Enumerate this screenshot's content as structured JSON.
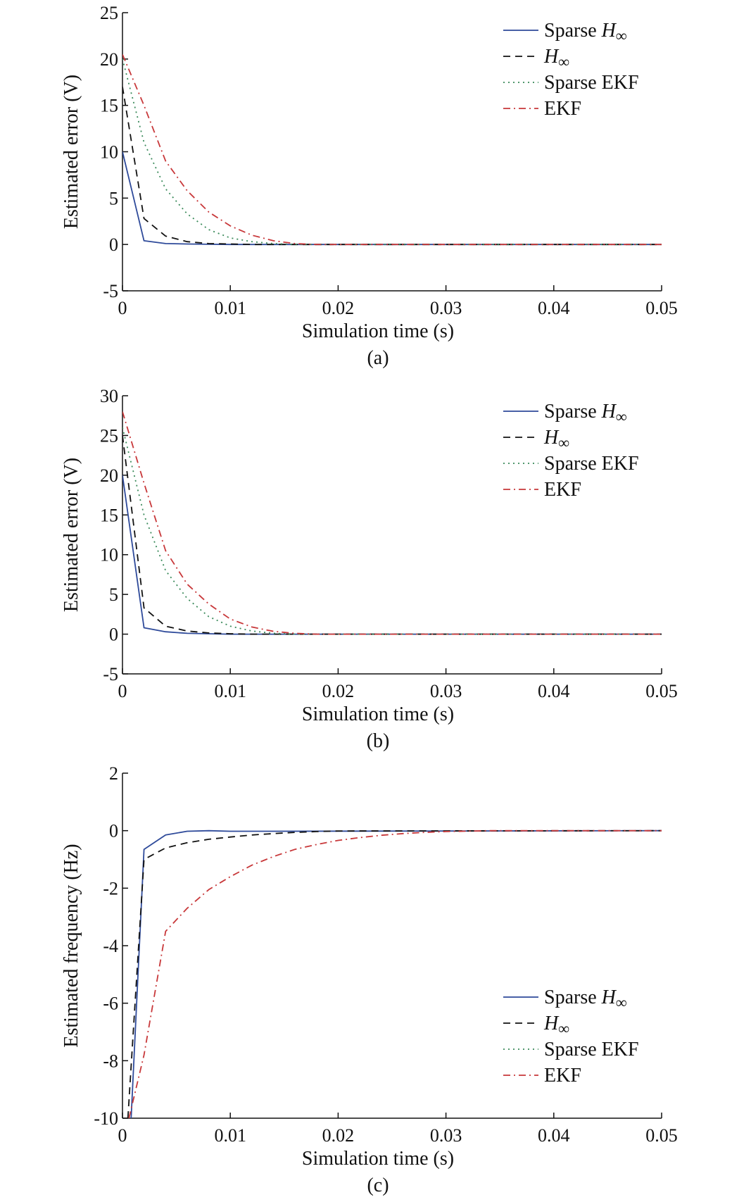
{
  "chart_data": [
    {
      "type": "line",
      "panel_label": "(a)",
      "xlabel": "Simulation time (s)",
      "ylabel": "Estimated error (V)",
      "xlim": [
        0,
        0.05
      ],
      "ylim": [
        -5,
        25
      ],
      "xticks": [
        "0",
        "0.01",
        "0.02",
        "0.03",
        "0.04",
        "0.05"
      ],
      "yticks": [
        "-5",
        "0",
        "5",
        "10",
        "15",
        "20",
        "25"
      ],
      "grid": false,
      "legend_position": "top-right",
      "series": [
        {
          "name": "Sparse H∞",
          "name_base": "Sparse ",
          "name_italic": "H",
          "name_sub": "∞",
          "color": "#2e4a9a",
          "dash": "solid",
          "x": [
            0,
            0.002,
            0.004,
            0.006,
            0.008,
            0.01,
            0.05
          ],
          "y": [
            10,
            0.4,
            0.1,
            0.05,
            0.02,
            0.0,
            0.0
          ]
        },
        {
          "name": "H∞",
          "name_base": "",
          "name_italic": "H",
          "name_sub": "∞",
          "color": "#111111",
          "dash": "dashed",
          "x": [
            0,
            0.002,
            0.004,
            0.006,
            0.008,
            0.01,
            0.012,
            0.05
          ],
          "y": [
            17,
            2.8,
            0.9,
            0.3,
            0.1,
            0.05,
            0.0,
            0.0
          ]
        },
        {
          "name": "Sparse EKF",
          "name_base": "Sparse EKF",
          "name_italic": "",
          "name_sub": "",
          "color": "#3a8a5a",
          "dash": "dotted",
          "x": [
            0,
            0.002,
            0.004,
            0.006,
            0.008,
            0.01,
            0.012,
            0.014,
            0.016,
            0.05
          ],
          "y": [
            20,
            11,
            6,
            3.3,
            1.6,
            0.7,
            0.3,
            0.1,
            0.0,
            0.0
          ]
        },
        {
          "name": "EKF",
          "name_base": "EKF",
          "name_italic": "",
          "name_sub": "",
          "color": "#c8383a",
          "dash": "dashdot",
          "x": [
            0,
            0.002,
            0.004,
            0.006,
            0.008,
            0.01,
            0.012,
            0.014,
            0.016,
            0.018,
            0.05
          ],
          "y": [
            20.5,
            15,
            9,
            5.8,
            3.5,
            2.0,
            1.0,
            0.4,
            0.1,
            0.0,
            0.0
          ]
        }
      ]
    },
    {
      "type": "line",
      "panel_label": "(b)",
      "xlabel": "Simulation time (s)",
      "ylabel": "Estimated error (V)",
      "xlim": [
        0,
        0.05
      ],
      "ylim": [
        -5,
        30
      ],
      "xticks": [
        "0",
        "0.01",
        "0.02",
        "0.03",
        "0.04",
        "0.05"
      ],
      "yticks": [
        "-5",
        "0",
        "5",
        "10",
        "15",
        "20",
        "25",
        "30"
      ],
      "grid": false,
      "legend_position": "top-right",
      "series": [
        {
          "name": "Sparse H∞",
          "name_base": "Sparse ",
          "name_italic": "H",
          "name_sub": "∞",
          "color": "#2e4a9a",
          "dash": "solid",
          "x": [
            0,
            0.002,
            0.004,
            0.006,
            0.008,
            0.01,
            0.05
          ],
          "y": [
            20,
            0.8,
            0.3,
            0.1,
            0.05,
            0.0,
            0.0
          ]
        },
        {
          "name": "H∞",
          "name_base": "",
          "name_italic": "H",
          "name_sub": "∞",
          "color": "#111111",
          "dash": "dashed",
          "x": [
            0,
            0.002,
            0.004,
            0.006,
            0.008,
            0.01,
            0.012,
            0.05
          ],
          "y": [
            25,
            3.3,
            1.0,
            0.4,
            0.15,
            0.05,
            0.0,
            0.0
          ]
        },
        {
          "name": "Sparse EKF",
          "name_base": "Sparse EKF",
          "name_italic": "",
          "name_sub": "",
          "color": "#3a8a5a",
          "dash": "dotted",
          "x": [
            0,
            0.002,
            0.004,
            0.006,
            0.008,
            0.01,
            0.012,
            0.014,
            0.016,
            0.05
          ],
          "y": [
            26,
            15,
            8,
            4.5,
            2.2,
            1.0,
            0.4,
            0.1,
            0.0,
            0.0
          ]
        },
        {
          "name": "EKF",
          "name_base": "EKF",
          "name_italic": "",
          "name_sub": "",
          "color": "#c8383a",
          "dash": "dashdot",
          "x": [
            0,
            0.002,
            0.004,
            0.006,
            0.008,
            0.01,
            0.012,
            0.014,
            0.016,
            0.018,
            0.05
          ],
          "y": [
            28,
            19,
            10.5,
            6.3,
            3.8,
            1.9,
            0.9,
            0.35,
            0.1,
            0.0,
            0.0
          ]
        }
      ]
    },
    {
      "type": "line",
      "panel_label": "(c)",
      "xlabel": "Simulation time (s)",
      "ylabel": "Estimated frequency (Hz)",
      "xlim": [
        0,
        0.05
      ],
      "ylim": [
        -10,
        2
      ],
      "xticks": [
        "0",
        "0.01",
        "0.02",
        "0.03",
        "0.04",
        "0.05"
      ],
      "yticks": [
        "-10",
        "-8",
        "-6",
        "-4",
        "-2",
        "0",
        "2"
      ],
      "grid": false,
      "legend_position": "bottom-right",
      "series": [
        {
          "name": "Sparse H∞",
          "name_base": "Sparse ",
          "name_italic": "H",
          "name_sub": "∞",
          "color": "#2e4a9a",
          "dash": "solid",
          "x": [
            0.0008,
            0.002,
            0.004,
            0.006,
            0.008,
            0.01,
            0.012,
            0.05
          ],
          "y": [
            -10,
            -0.65,
            -0.15,
            -0.02,
            0.0,
            -0.02,
            -0.02,
            0.0
          ]
        },
        {
          "name": "H∞",
          "name_base": "",
          "name_italic": "H",
          "name_sub": "∞",
          "color": "#111111",
          "dash": "dashed",
          "x": [
            0.0005,
            0.002,
            0.004,
            0.006,
            0.008,
            0.01,
            0.012,
            0.014,
            0.016,
            0.018,
            0.02,
            0.05
          ],
          "y": [
            -10,
            -1.0,
            -0.6,
            -0.42,
            -0.3,
            -0.22,
            -0.15,
            -0.1,
            -0.06,
            -0.03,
            -0.01,
            0.0
          ]
        },
        {
          "name": "Sparse EKF",
          "name_base": "Sparse EKF",
          "name_italic": "",
          "name_sub": "",
          "color": "#3a8a5a",
          "dash": "dotted",
          "x": [],
          "y": []
        },
        {
          "name": "EKF",
          "name_base": "EKF",
          "name_italic": "",
          "name_sub": "",
          "color": "#c8383a",
          "dash": "dashdot",
          "x": [
            0.0006,
            0.002,
            0.004,
            0.006,
            0.008,
            0.01,
            0.012,
            0.014,
            0.016,
            0.018,
            0.02,
            0.022,
            0.024,
            0.026,
            0.028,
            0.03,
            0.034,
            0.05
          ],
          "y": [
            -10,
            -7.8,
            -3.5,
            -2.7,
            -2.05,
            -1.6,
            -1.2,
            -0.9,
            -0.65,
            -0.48,
            -0.34,
            -0.24,
            -0.16,
            -0.1,
            -0.06,
            -0.03,
            0.0,
            0.0
          ]
        }
      ]
    }
  ]
}
